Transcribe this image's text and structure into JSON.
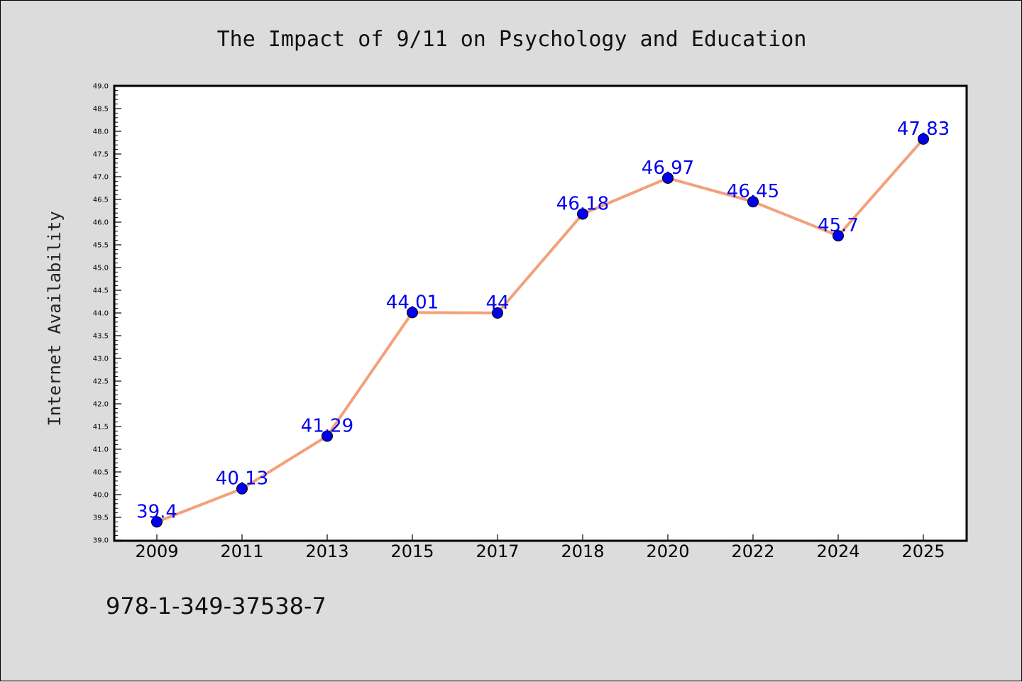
{
  "chart_data": {
    "type": "line",
    "title": "The Impact of 9/11 on Psychology and Education",
    "xlabel": "",
    "ylabel": "Internet Availability",
    "categories": [
      "2009",
      "2011",
      "2013",
      "2015",
      "2017",
      "2018",
      "2020",
      "2022",
      "2024",
      "2025"
    ],
    "series": [
      {
        "values": [
          39.4,
          40.13,
          41.29,
          44.01,
          44,
          46.18,
          46.97,
          46.45,
          45.7,
          47.83
        ],
        "data_labels": [
          "39.4",
          "40.13",
          "41.29",
          "44.01",
          "44",
          "46.18",
          "46.97",
          "46.45",
          "45.7",
          "47.83"
        ],
        "line_color": "#f4a07a",
        "marker_color": "#0000ee",
        "label_color": "#0000ee"
      }
    ],
    "ylim": [
      39.0,
      49.0
    ],
    "ytick_step": 0.5,
    "grid": false,
    "legend": "none"
  },
  "footnote": "978-1-349-37538-7",
  "colors": {
    "background": "#dcdcdc",
    "plot_background": "#ffffff"
  }
}
